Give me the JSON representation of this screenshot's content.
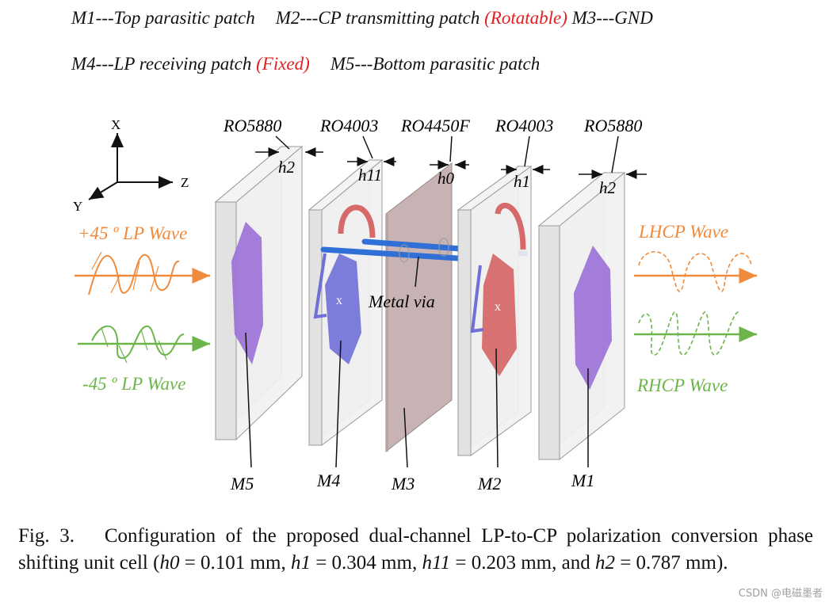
{
  "legend": {
    "m1": "M1---Top parasitic patch",
    "m2_prefix": "M2---CP transmitting patch",
    "m2_note": "(Rotatable)",
    "m3": "M3---GND",
    "m4_prefix": "M4---LP receiving patch",
    "m4_note": "(Fixed)",
    "m5": "M5---Bottom parasitic patch"
  },
  "axes": {
    "x": "X",
    "y": "Y",
    "z": "Z"
  },
  "materials": [
    "RO5880",
    "RO4003",
    "RO4450F",
    "RO4003",
    "RO5880"
  ],
  "thickness_labels": [
    "h2",
    "h11",
    "h0",
    "h1",
    "h2"
  ],
  "layer_labels": [
    "M5",
    "M4",
    "M3",
    "M2",
    "M1"
  ],
  "via_label": "Metal via",
  "waves": {
    "in_top": "+45 º LP Wave",
    "in_bottom": "-45 º LP Wave",
    "out_top": "LHCP Wave",
    "out_bottom": "RHCP Wave"
  },
  "colors": {
    "orange": "#f08a3c",
    "green": "#6db54a",
    "red_text": "#e02020",
    "purple_patch": "#9b6fd6",
    "blue_patch": "#6f6fd8",
    "red_patch": "#d66a6a",
    "gnd": "#c7b3b3",
    "via": "#2f6fd6"
  },
  "caption": {
    "fig": "Fig. 3.",
    "text1": "Configuration of the proposed dual-channel LP-to-CP polarization conversion phase shifting unit cell (",
    "h0_sym": "h0",
    "h0_val": " = 0.101 mm, ",
    "h1_sym": "h1",
    "h1_val": " = 0.304 mm, ",
    "h11_sym": "h11",
    "h11_val": " = 0.203 mm, and ",
    "h2_sym": "h2",
    "h2_val": " = 0.787 mm)."
  },
  "watermark": "CSDN @电磁墨者"
}
